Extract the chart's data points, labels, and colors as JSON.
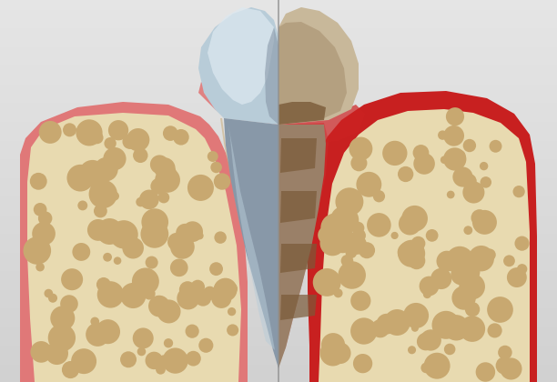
{
  "bg_color": "#d4d4d4",
  "bone_color": "#e8dab0",
  "bone_hole_color": "#c8a870",
  "gum_left_color": "#e07878",
  "gum_left_inner": "#e89090",
  "gum_right_color": "#c82020",
  "gum_right_inner": "#dd4444",
  "healthy_crown_base": "#a8bcc8",
  "healthy_crown_highlight": "#dce8f0",
  "healthy_crown_mid": "#b8ccd8",
  "healthy_root_color": "#8898a8",
  "healthy_root_shadow": "#6878888",
  "unhealthy_crown_base": "#c8b89a",
  "unhealthy_crown_shadow": "#a89070",
  "unhealthy_root_color": "#9a8068",
  "unhealthy_tartar": "#7a5a38",
  "unhealthy_dark": "#6a4828",
  "divider_color": "#909090",
  "fig_width": 6.12,
  "fig_height": 4.2,
  "dpi": 100
}
